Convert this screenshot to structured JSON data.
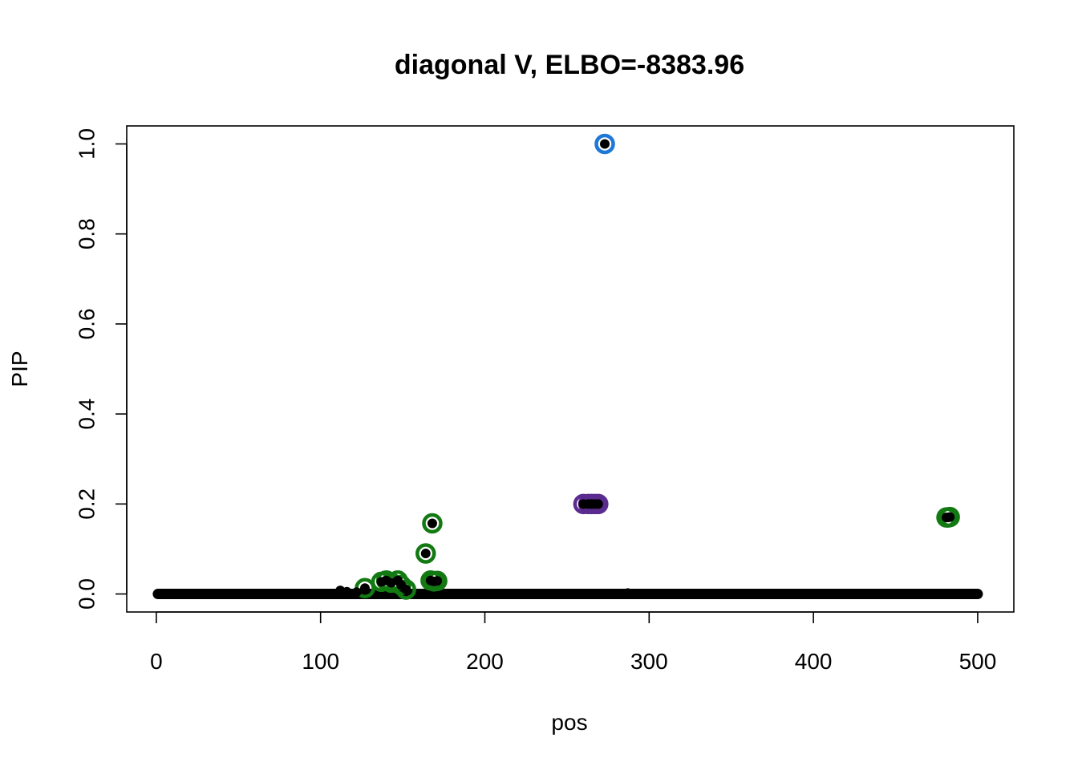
{
  "chart_data": {
    "type": "scatter",
    "title": "diagonal V, ELBO=-8383.96",
    "xlabel": "pos",
    "ylabel": "PIP",
    "xlim": [
      -18,
      522
    ],
    "ylim": [
      -0.04,
      1.04
    ],
    "x_ticks": [
      0,
      100,
      200,
      300,
      400,
      500
    ],
    "x_tick_labels": [
      "0",
      "100",
      "200",
      "300",
      "400",
      "500"
    ],
    "y_ticks": [
      0,
      0.2,
      0.4,
      0.6,
      0.8,
      1
    ],
    "y_tick_labels": [
      "0.0",
      "0.2",
      "0.4",
      "0.6",
      "0.8",
      "1.0"
    ],
    "grid": false,
    "legend": "none",
    "point_color": "#000000",
    "baseline": {
      "x_start": 1,
      "x_end": 500,
      "y": 0.0
    },
    "points": [
      {
        "x": 112,
        "y": 0.008
      },
      {
        "x": 116,
        "y": 0.005
      },
      {
        "x": 122,
        "y": 0.004
      },
      {
        "x": 127,
        "y": 0.013
      },
      {
        "x": 137,
        "y": 0.027
      },
      {
        "x": 140,
        "y": 0.03
      },
      {
        "x": 143,
        "y": 0.025
      },
      {
        "x": 147,
        "y": 0.03
      },
      {
        "x": 149,
        "y": 0.02
      },
      {
        "x": 152,
        "y": 0.01
      },
      {
        "x": 164,
        "y": 0.09
      },
      {
        "x": 167,
        "y": 0.03
      },
      {
        "x": 168,
        "y": 0.157
      },
      {
        "x": 169,
        "y": 0.028
      },
      {
        "x": 171,
        "y": 0.029
      },
      {
        "x": 191,
        "y": 0.001
      },
      {
        "x": 205,
        "y": 0.001
      },
      {
        "x": 232,
        "y": 0.0
      },
      {
        "x": 260,
        "y": 0.2
      },
      {
        "x": 263,
        "y": 0.2
      },
      {
        "x": 265,
        "y": 0.2
      },
      {
        "x": 267,
        "y": 0.2
      },
      {
        "x": 269,
        "y": 0.2
      },
      {
        "x": 273,
        "y": 1.0
      },
      {
        "x": 287,
        "y": 0.002
      },
      {
        "x": 439,
        "y": 0.001
      },
      {
        "x": 481,
        "y": 0.17
      },
      {
        "x": 482,
        "y": 0.17
      },
      {
        "x": 483,
        "y": 0.171
      }
    ],
    "credible_sets": [
      {
        "color": "#1F77D6",
        "x": [
          273
        ],
        "y": [
          1.0
        ]
      },
      {
        "color": "#5B2C8F",
        "x": [
          260,
          263,
          265,
          267,
          269
        ],
        "y": [
          0.2,
          0.2,
          0.2,
          0.2,
          0.2
        ]
      },
      {
        "color": "#137A13",
        "x": [
          127,
          137,
          140,
          143,
          147,
          149,
          152,
          164,
          167,
          168,
          169,
          171
        ],
        "y": [
          0.013,
          0.027,
          0.03,
          0.025,
          0.03,
          0.02,
          0.01,
          0.09,
          0.03,
          0.157,
          0.028,
          0.029
        ]
      },
      {
        "color": "#137A13",
        "x": [
          481,
          482,
          483
        ],
        "y": [
          0.17,
          0.17,
          0.171
        ]
      }
    ]
  }
}
